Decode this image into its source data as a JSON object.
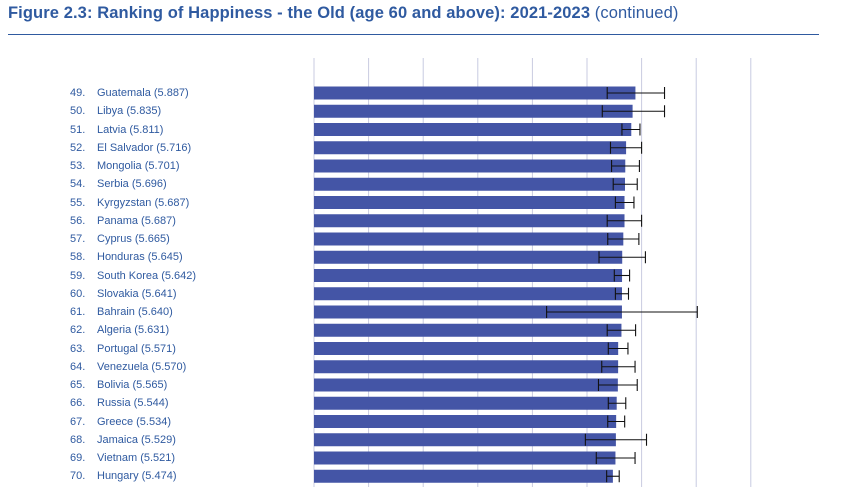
{
  "figure": {
    "title_bold": "Figure 2.3: Ranking of Happiness - the Old (age 60 and above): 2021-2023",
    "title_suffix": "(continued)"
  },
  "colors": {
    "bar": "#4455a6",
    "text": "#2f5aa0",
    "grid": "#c8cbe0",
    "error": "#111111"
  },
  "chart_data": {
    "type": "bar",
    "orientation": "horizontal",
    "title": "Ranking of Happiness - the Old (age 60 and above): 2021-2023",
    "xlabel": "",
    "ylabel": "",
    "xlim": [
      0,
      8
    ],
    "grid": true,
    "categories": [
      "Guatemala",
      "Libya",
      "Latvia",
      "El Salvador",
      "Mongolia",
      "Serbia",
      "Kyrgyzstan",
      "Panama",
      "Cyprus",
      "Honduras",
      "South Korea",
      "Slovakia",
      "Bahrain",
      "Algeria",
      "Portugal",
      "Venezuela",
      "Bolivia",
      "Russia",
      "Greece",
      "Jamaica",
      "Vietnam",
      "Hungary"
    ],
    "rows": [
      {
        "rank": "49.",
        "label": "Guatemala (5.887)",
        "value": 5.887,
        "ci": [
          5.37,
          6.42
        ]
      },
      {
        "rank": "50.",
        "label": "Libya (5.835)",
        "value": 5.835,
        "ci": [
          5.28,
          6.42
        ]
      },
      {
        "rank": "51.",
        "label": "Latvia (5.811)",
        "value": 5.811,
        "ci": [
          5.64,
          5.97
        ]
      },
      {
        "rank": "52.",
        "label": "El Salvador (5.716)",
        "value": 5.716,
        "ci": [
          5.43,
          6.0
        ]
      },
      {
        "rank": "53.",
        "label": "Mongolia (5.701)",
        "value": 5.701,
        "ci": [
          5.45,
          5.96
        ]
      },
      {
        "rank": "54.",
        "label": "Serbia (5.696)",
        "value": 5.696,
        "ci": [
          5.48,
          5.92
        ]
      },
      {
        "rank": "55.",
        "label": "Kyrgyzstan (5.687)",
        "value": 5.687,
        "ci": [
          5.52,
          5.86
        ]
      },
      {
        "rank": "56.",
        "label": "Panama (5.687)",
        "value": 5.687,
        "ci": [
          5.37,
          6.0
        ]
      },
      {
        "rank": "57.",
        "label": "Cyprus (5.665)",
        "value": 5.665,
        "ci": [
          5.38,
          5.95
        ]
      },
      {
        "rank": "58.",
        "label": "Honduras (5.645)",
        "value": 5.645,
        "ci": [
          5.22,
          6.07
        ]
      },
      {
        "rank": "59.",
        "label": "South Korea (5.642)",
        "value": 5.642,
        "ci": [
          5.5,
          5.78
        ]
      },
      {
        "rank": "60.",
        "label": "Slovakia (5.641)",
        "value": 5.641,
        "ci": [
          5.52,
          5.76
        ]
      },
      {
        "rank": "61.",
        "label": "Bahrain (5.640)",
        "value": 5.64,
        "ci": [
          4.26,
          7.02
        ]
      },
      {
        "rank": "62.",
        "label": "Algeria (5.631)",
        "value": 5.631,
        "ci": [
          5.37,
          5.89
        ]
      },
      {
        "rank": "63.",
        "label": "Portugal (5.571)",
        "value": 5.571,
        "ci": [
          5.39,
          5.75
        ]
      },
      {
        "rank": "64.",
        "label": "Venezuela (5.570)",
        "value": 5.57,
        "ci": [
          5.27,
          5.88
        ]
      },
      {
        "rank": "65.",
        "label": "Bolivia (5.565)",
        "value": 5.565,
        "ci": [
          5.21,
          5.92
        ]
      },
      {
        "rank": "66.",
        "label": "Russia (5.544)",
        "value": 5.544,
        "ci": [
          5.39,
          5.71
        ]
      },
      {
        "rank": "67.",
        "label": "Greece (5.534)",
        "value": 5.534,
        "ci": [
          5.38,
          5.69
        ]
      },
      {
        "rank": "68.",
        "label": "Jamaica (5.529)",
        "value": 5.529,
        "ci": [
          4.97,
          6.09
        ]
      },
      {
        "rank": "69.",
        "label": "Vietnam (5.521)",
        "value": 5.521,
        "ci": [
          5.17,
          5.88
        ]
      },
      {
        "rank": "70.",
        "label": "Hungary (5.474)",
        "value": 5.474,
        "ci": [
          5.36,
          5.59
        ]
      }
    ]
  }
}
